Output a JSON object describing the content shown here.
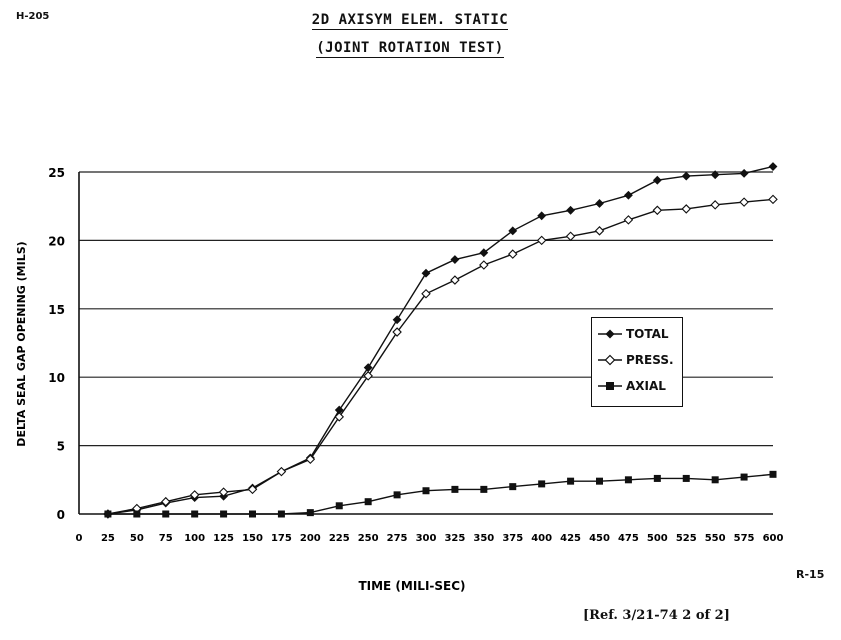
{
  "doc_id": "H-205",
  "page_code": "R-15",
  "reference": "[Ref. 3/21-74 2 of 2]",
  "chart_data": {
    "type": "line",
    "title": "2D AXISYM ELEM. STATIC",
    "subtitle": "(JOINT ROTATION TEST)",
    "xlabel": "TIME (MILI-SEC)",
    "ylabel": "DELTA SEAL GAP OPENING (MILS)",
    "xlim": [
      0,
      600
    ],
    "ylim": [
      0,
      25
    ],
    "x_ticks": [
      0,
      25,
      50,
      75,
      100,
      125,
      150,
      175,
      200,
      225,
      250,
      275,
      300,
      325,
      350,
      375,
      400,
      425,
      450,
      475,
      500,
      525,
      550,
      575,
      600
    ],
    "y_ticks": [
      0,
      5,
      10,
      15,
      20,
      25
    ],
    "grid": "horizontal",
    "legend_position": "right",
    "x": [
      25,
      50,
      75,
      100,
      125,
      150,
      175,
      200,
      225,
      250,
      275,
      300,
      325,
      350,
      375,
      400,
      425,
      450,
      475,
      500,
      525,
      550,
      575,
      600
    ],
    "series": [
      {
        "name": "TOTAL",
        "marker": "filled-diamond",
        "values": [
          0,
          0.3,
          0.8,
          1.2,
          1.3,
          1.9,
          3.1,
          4.1,
          7.6,
          10.7,
          14.2,
          17.6,
          18.6,
          19.1,
          20.7,
          21.8,
          22.2,
          22.7,
          23.3,
          24.4,
          24.7,
          24.8,
          24.9,
          25.4
        ]
      },
      {
        "name": "PRESS.",
        "marker": "open-diamond",
        "values": [
          0,
          0.4,
          0.9,
          1.4,
          1.6,
          1.8,
          3.1,
          4.0,
          7.1,
          10.1,
          13.3,
          16.1,
          17.1,
          18.2,
          19.0,
          20.0,
          20.3,
          20.7,
          21.5,
          22.2,
          22.3,
          22.6,
          22.8,
          23.0
        ]
      },
      {
        "name": "AXIAL",
        "marker": "filled-square",
        "values": [
          0,
          0,
          0,
          0,
          0,
          0,
          0,
          0.1,
          0.6,
          0.9,
          1.4,
          1.7,
          1.8,
          1.8,
          2.0,
          2.2,
          2.4,
          2.4,
          2.5,
          2.6,
          2.6,
          2.5,
          2.7,
          2.9
        ]
      }
    ]
  }
}
